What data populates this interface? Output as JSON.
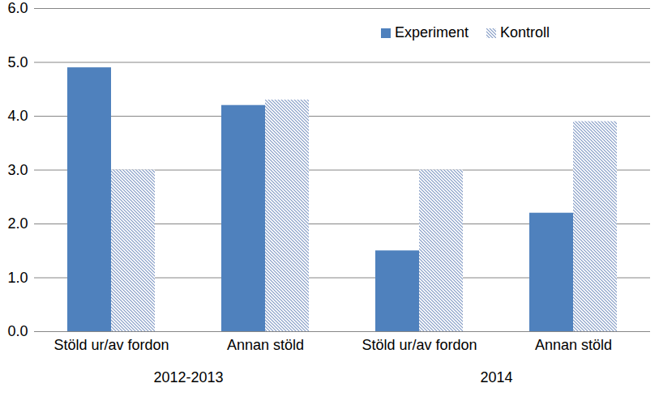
{
  "chart_data": {
    "type": "bar",
    "categories": [
      "Stöld ur/av fordon",
      "Annan stöld",
      "Stöld ur/av fordon",
      "Annan stöld"
    ],
    "groups": [
      "2012-2013",
      "2012-2013",
      "2014",
      "2014"
    ],
    "series": [
      {
        "name": "Experiment",
        "color": "#4f81bd",
        "values": [
          4.9,
          4.2,
          1.5,
          2.2
        ]
      },
      {
        "name": "Kontroll",
        "color": "#7f98c4",
        "values": [
          3.0,
          4.3,
          3.0,
          3.9
        ]
      }
    ],
    "ylim": [
      0,
      6
    ],
    "yticks": [
      0,
      1,
      2,
      3,
      4,
      5,
      6
    ],
    "grid": true,
    "legend": "top-right"
  }
}
